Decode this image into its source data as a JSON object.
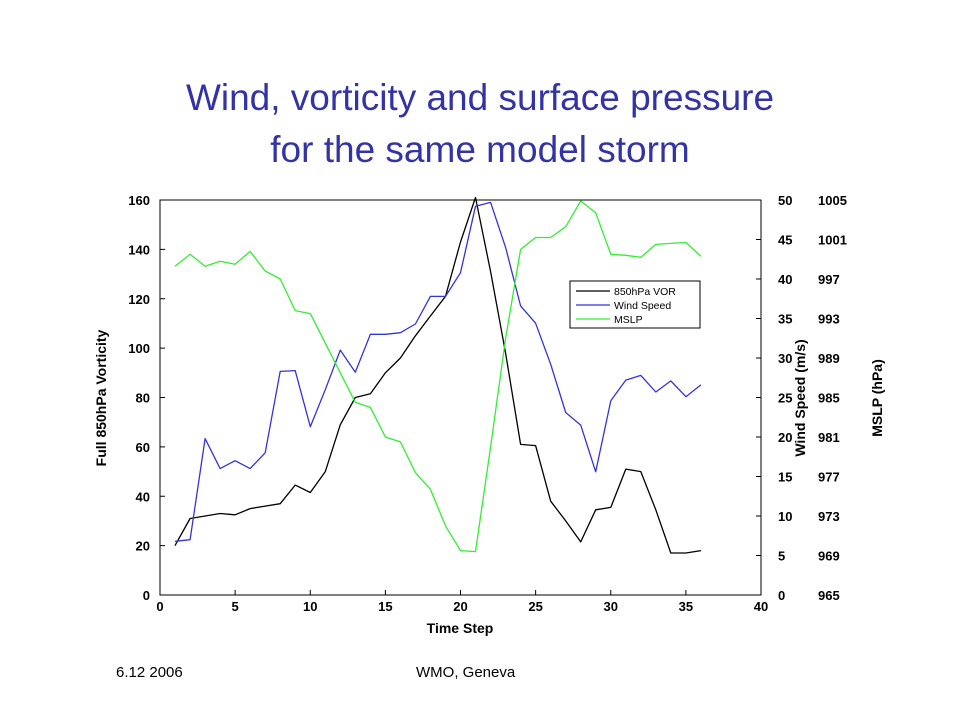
{
  "slide": {
    "title_line1": "Wind, vorticity and surface pressure",
    "title_line2": "for the  same model storm",
    "footer_date": "6.12 2006",
    "footer_org": "WMO, Geneva"
  },
  "chart_data": {
    "type": "line",
    "xlabel": "Time Step",
    "xlim": [
      0,
      40
    ],
    "xticks": [
      0,
      5,
      10,
      15,
      20,
      25,
      30,
      35,
      40
    ],
    "y_axes": [
      {
        "id": "vor",
        "label": "Full 850hPa Vorticity",
        "side": "left",
        "lim": [
          0,
          160
        ],
        "ticks": [
          0,
          20,
          40,
          60,
          80,
          100,
          120,
          140,
          160
        ]
      },
      {
        "id": "wind",
        "label": "Wind Speed (m/s)",
        "side": "right",
        "lim": [
          0,
          50
        ],
        "ticks": [
          0,
          5,
          10,
          15,
          20,
          25,
          30,
          35,
          40,
          45,
          50
        ]
      },
      {
        "id": "mslp",
        "label": "MSLP (hPa)",
        "side": "right-outer",
        "lim": [
          965,
          1005
        ],
        "ticks": [
          965,
          969,
          973,
          977,
          981,
          985,
          989,
          993,
          997,
          1001,
          1005
        ]
      }
    ],
    "legend_position": "center-right",
    "x": [
      1,
      2,
      3,
      4,
      5,
      6,
      7,
      8,
      9,
      10,
      11,
      12,
      13,
      14,
      15,
      16,
      17,
      18,
      19,
      20,
      21,
      22,
      23,
      24,
      25,
      26,
      27,
      28,
      29,
      30,
      31,
      32,
      33,
      34,
      35,
      36
    ],
    "series": [
      {
        "name": "850hPa VOR",
        "axis": "vor",
        "color": "#000000",
        "values": [
          20,
          31,
          32,
          33,
          32.5,
          35,
          36,
          37,
          44.5,
          41.5,
          50,
          69,
          80,
          81.5,
          90,
          96,
          105,
          113,
          121,
          143,
          161,
          131,
          98,
          61,
          60.5,
          38,
          30,
          21.5,
          34.5,
          35.5,
          51,
          50,
          34.5,
          17,
          17,
          18
        ]
      },
      {
        "name": "Wind Speed",
        "axis": "wind",
        "color": "#3333dd",
        "values": [
          6.8,
          7,
          19.8,
          16,
          17,
          16,
          18,
          28.3,
          28.4,
          21.3,
          26,
          31,
          28.2,
          33,
          33,
          33.2,
          34.3,
          37.8,
          37.8,
          40.8,
          49.2,
          49.7,
          44,
          36.6,
          34.4,
          29.2,
          23.1,
          21.5,
          15.6,
          24.6,
          27.2,
          27.8,
          25.7,
          27.1,
          25.1,
          26.6
        ]
      },
      {
        "name": "MSLP",
        "axis": "mslp",
        "color": "#33ee33",
        "values": [
          998.3,
          999.5,
          998.3,
          998.8,
          998.5,
          999.8,
          997.8,
          997,
          993.8,
          993.5,
          990.5,
          987.5,
          984.5,
          984,
          981,
          980.5,
          977.4,
          975.7,
          972,
          969.5,
          969.4,
          980,
          991,
          1000,
          1001.2,
          1001.2,
          1002.3,
          1004.9,
          1003.7,
          999.5,
          999.4,
          999.2,
          1000.5,
          1000.6,
          1000.7,
          999.3
        ]
      }
    ]
  }
}
